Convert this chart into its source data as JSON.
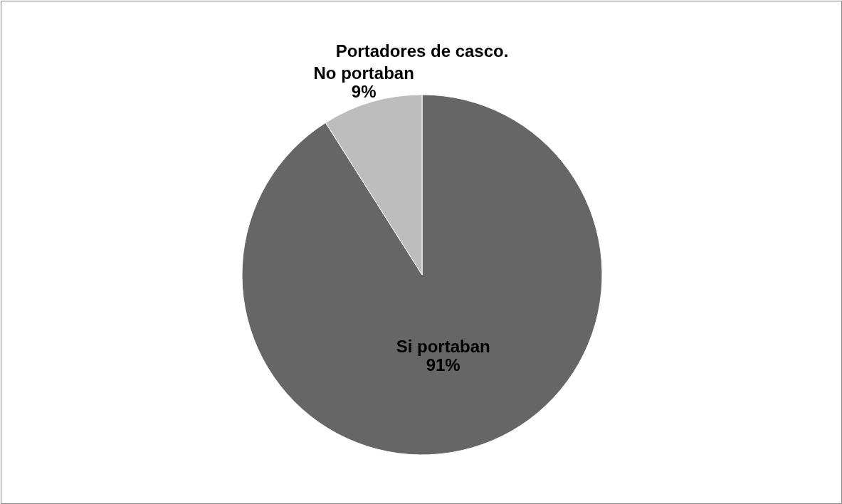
{
  "chart_data": {
    "type": "pie",
    "title": "Portadores de casco.",
    "categories": [
      "Si portaban",
      "No portaban"
    ],
    "values": [
      91,
      9
    ],
    "value_labels": [
      "91%",
      "9%"
    ],
    "colors": [
      "#666666",
      "#bdbdbd"
    ]
  }
}
